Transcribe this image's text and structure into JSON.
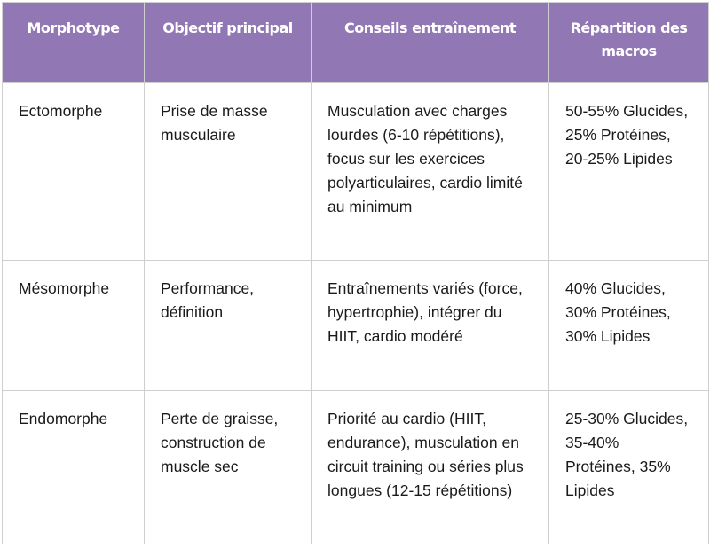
{
  "colors": {
    "header_bg": "#9178b4",
    "header_text": "#ffffff",
    "border": "#cfcfcf"
  },
  "headers": [
    "Morphotype",
    "Objectif principal",
    "Conseils entraînement",
    "Répartition des macros"
  ],
  "rows": [
    [
      "Ectomorphe",
      "Prise de masse musculaire",
      "Musculation avec charges lourdes (6-10 répétitions), focus sur les exercices polyarticulaires, cardio limité au minimum",
      "50-55% Glucides, 25% Protéines, 20-25% Lipides"
    ],
    [
      "Mésomorphe",
      "Performance, définition",
      "Entraînements variés (force, hypertrophie), intégrer du HIIT, cardio modéré",
      "40% Glucides, 30% Protéines, 30% Lipides"
    ],
    [
      "Endomorphe",
      "Perte de graisse, construction de muscle sec",
      "Priorité au cardio (HIIT, endurance), musculation en circuit training ou séries plus longues (12-15 répétitions)",
      "25-30% Glucides, 35-40% Protéines, 35% Lipides"
    ]
  ]
}
